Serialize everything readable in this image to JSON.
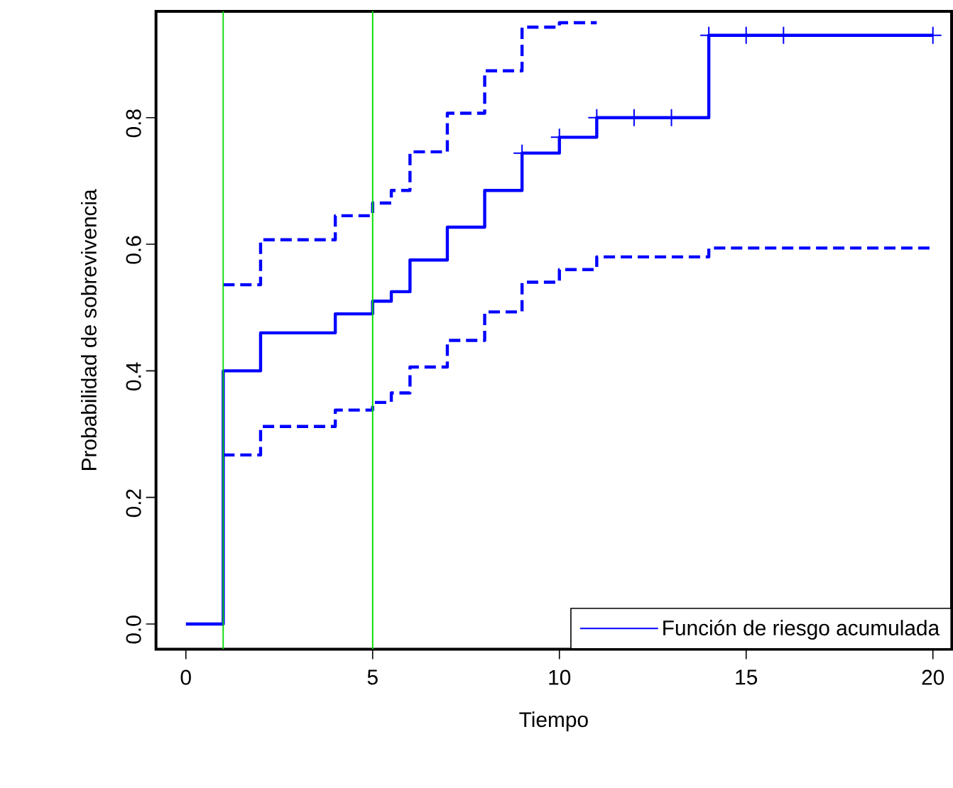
{
  "chart_data": {
    "type": "step",
    "xlabel": "Tiempo",
    "ylabel": "Probabilidad de sobrevivencia",
    "xlim": [
      -0.8,
      20.5
    ],
    "ylim": [
      -0.04,
      0.968
    ],
    "xticks": [
      0,
      5,
      10,
      15,
      20
    ],
    "yticks": [
      {
        "value": 0,
        "label": "0.0"
      },
      {
        "value": 0.2,
        "label": "0.2"
      },
      {
        "value": 0.4,
        "label": "0.4"
      },
      {
        "value": 0.6,
        "label": "0.6"
      },
      {
        "value": 0.8,
        "label": "0.8"
      }
    ],
    "grid": false,
    "legend": "bottom right",
    "ref_lines": [
      {
        "axis": "x",
        "value": 1,
        "color": "#00dd00"
      },
      {
        "axis": "x",
        "value": 5,
        "color": "#00dd00"
      }
    ],
    "series": [
      {
        "name": "Función de riesgo acumulada",
        "color": "#0000ff",
        "line_style": "solid",
        "x": [
          0,
          1,
          2,
          4,
          5,
          5.5,
          6,
          7,
          8,
          9,
          10,
          11,
          14,
          20
        ],
        "values": [
          0,
          0.4,
          0.46,
          0.49,
          0.51,
          0.525,
          0.575,
          0.627,
          0.685,
          0.744,
          0.769,
          0.8,
          0.93,
          0.93
        ]
      },
      {
        "type": "step",
        "color": "#0000ff",
        "line_style": "dashed",
        "x": [
          1,
          2,
          4,
          5,
          5.5,
          6,
          7,
          8,
          9,
          10,
          11
        ],
        "values": [
          0.536,
          0.607,
          0.645,
          0.665,
          0.685,
          0.746,
          0.807,
          0.874,
          0.943,
          0.95,
          0.95
        ]
      },
      {
        "type": "step",
        "color": "#0000ff",
        "line_style": "dashed",
        "x": [
          1,
          2,
          4,
          5,
          5.5,
          6,
          7,
          8,
          9,
          10,
          11,
          14,
          20
        ],
        "values": [
          0.267,
          0.312,
          0.338,
          0.35,
          0.365,
          0.406,
          0.448,
          0.493,
          0.54,
          0.56,
          0.58,
          0.594,
          0.594
        ]
      },
      {
        "type": "scatter",
        "color": "#0000ff",
        "marker": "cross",
        "x": [
          9,
          10,
          11,
          12,
          13,
          14,
          15,
          16,
          20
        ],
        "values": [
          0.744,
          0.769,
          0.8,
          0.8,
          0.8,
          0.93,
          0.93,
          0.93,
          0.93
        ]
      }
    ]
  }
}
